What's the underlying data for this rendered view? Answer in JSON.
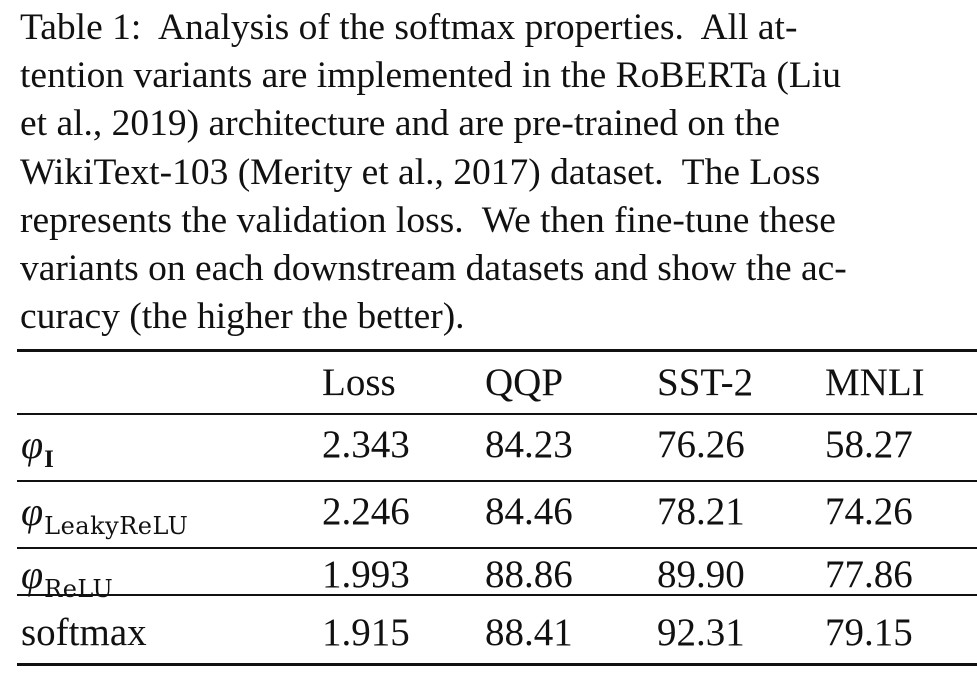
{
  "caption": {
    "lines": [
      "Table 1:  Analysis of the softmax properties.  All at-",
      "tention variants are implemented in the RoBERTa (Liu",
      "et al., 2019) architecture and are pre-trained on the",
      "WikiText-103 (Merity et al., 2017) dataset.  The Loss",
      "represents the validation loss.  We then fine-tune these",
      "variants on each downstream datasets and show the ac-",
      "curacy (the higher the better)."
    ]
  },
  "table": {
    "columns": [
      "Loss",
      "QQP",
      "SST-2",
      "MNLI"
    ],
    "rows": [
      {
        "symbol": "φ",
        "subscript": "I",
        "values": [
          "2.343",
          "84.23",
          "76.26",
          "58.27"
        ]
      },
      {
        "symbol": "φ",
        "subscript": "LeakyReLU",
        "values": [
          "2.246",
          "84.46",
          "78.21",
          "74.26"
        ]
      },
      {
        "symbol": "φ",
        "subscript": "ReLU",
        "values": [
          "1.993",
          "88.86",
          "89.90",
          "77.86"
        ]
      },
      {
        "label": "softmax",
        "values": [
          "1.915",
          "88.41",
          "92.31",
          "79.15"
        ]
      }
    ]
  }
}
